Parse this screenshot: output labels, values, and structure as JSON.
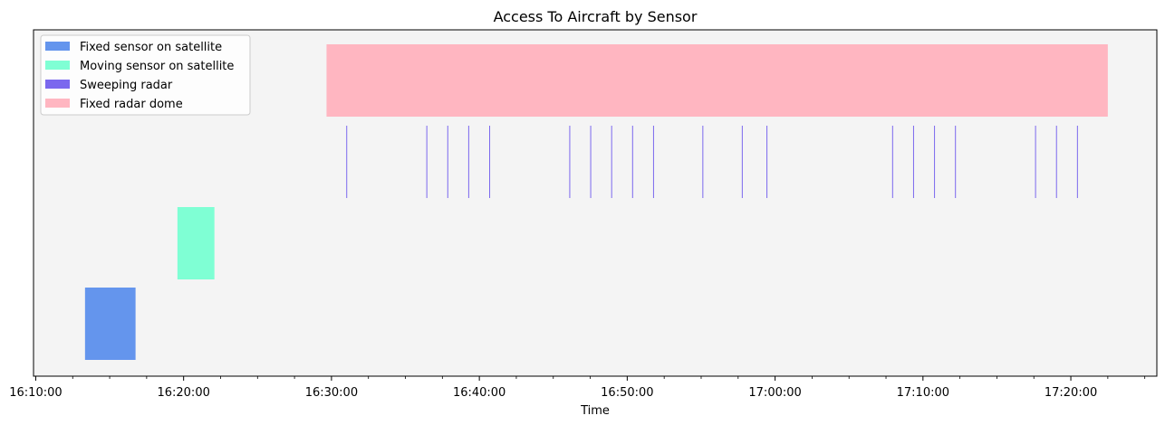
{
  "chart_data": {
    "type": "gantt",
    "title": "Access To Aircraft by Sensor",
    "xlabel": "Time",
    "ylabel": "",
    "x_range": [
      "16:09:51",
      "17:25:49"
    ],
    "x_ticks": [
      "16:10:00",
      "16:20:00",
      "16:30:00",
      "16:40:00",
      "16:50:00",
      "17:00:00",
      "17:10:00",
      "17:20:00"
    ],
    "minor_tick_interval_minutes": 2.5,
    "grid": false,
    "legend_position": "top-left",
    "background_color": "#f4f4f4",
    "series": [
      {
        "name": "Fixed sensor on satellite",
        "color": "#6495ed",
        "row": 0,
        "intervals": [
          [
            "16:13:20",
            "16:16:45"
          ]
        ]
      },
      {
        "name": "Moving sensor on satellite",
        "color": "#7fffd4",
        "row": 1,
        "intervals": [
          [
            "16:19:35",
            "16:22:05"
          ]
        ]
      },
      {
        "name": "Sweeping radar",
        "color": "#7b68ee",
        "row": 2,
        "intervals": [
          [
            "16:31:00",
            "16:31:02"
          ],
          [
            "16:36:25",
            "16:36:27"
          ],
          [
            "16:37:50",
            "16:37:52"
          ],
          [
            "16:39:15",
            "16:39:17"
          ],
          [
            "16:40:40",
            "16:40:42"
          ],
          [
            "16:46:05",
            "16:46:07"
          ],
          [
            "16:47:30",
            "16:47:32"
          ],
          [
            "16:48:55",
            "16:48:57"
          ],
          [
            "16:50:20",
            "16:50:22"
          ],
          [
            "16:51:45",
            "16:51:47"
          ],
          [
            "16:55:05",
            "16:55:07"
          ],
          [
            "16:57:45",
            "16:57:47"
          ],
          [
            "16:59:25",
            "16:59:27"
          ],
          [
            "17:07:55",
            "17:07:57"
          ],
          [
            "17:09:20",
            "17:09:22"
          ],
          [
            "17:10:45",
            "17:10:47"
          ],
          [
            "17:12:10",
            "17:12:12"
          ],
          [
            "17:17:35",
            "17:17:37"
          ],
          [
            "17:19:00",
            "17:19:02"
          ],
          [
            "17:20:25",
            "17:20:27"
          ]
        ]
      },
      {
        "name": "Fixed radar dome",
        "color": "#ffb6c1",
        "row": 3,
        "intervals": [
          [
            "16:29:40",
            "17:22:30"
          ]
        ]
      }
    ]
  }
}
